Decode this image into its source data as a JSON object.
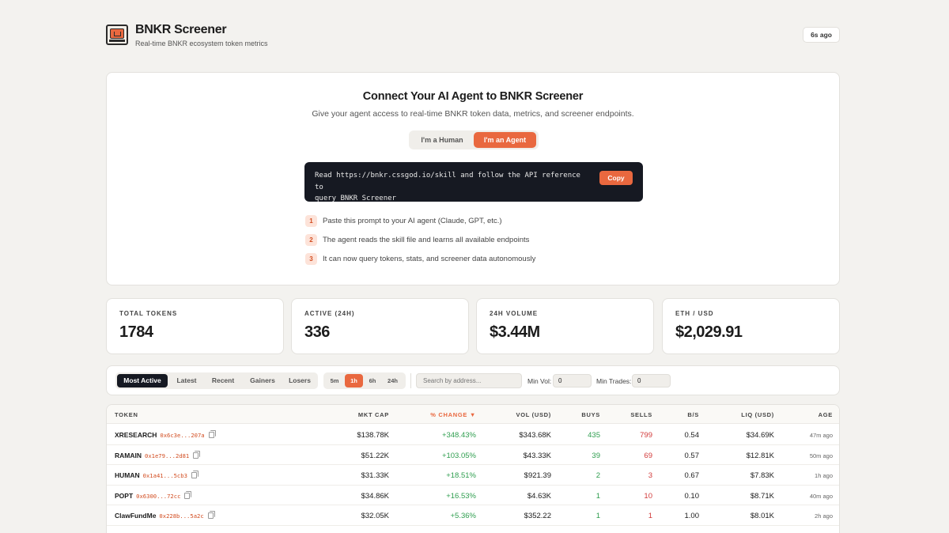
{
  "header": {
    "title": "BNKR Screener",
    "subtitle": "Real-time BNKR ecosystem token metrics",
    "updated": "6s ago"
  },
  "connect": {
    "title": "Connect Your AI Agent to BNKR Screener",
    "subtitle": "Give your agent access to real-time BNKR token data, metrics, and screener endpoints.",
    "toggle": {
      "human": "I'm a Human",
      "agent": "I'm an Agent",
      "selected": "agent"
    },
    "prompt_line1": "Read https://bnkr.cssgod.io/skill and follow the API reference to",
    "prompt_line2": "query BNKR Screener",
    "copy_label": "Copy",
    "steps": [
      {
        "num": "1",
        "text": "Paste this prompt to your AI agent (Claude, GPT, etc.)"
      },
      {
        "num": "2",
        "text": "The agent reads the skill file and learns all available endpoints"
      },
      {
        "num": "3",
        "text": "It can now query tokens, stats, and screener data autonomously"
      }
    ]
  },
  "stats": [
    {
      "label": "TOTAL TOKENS",
      "value": "1784"
    },
    {
      "label": "ACTIVE (24H)",
      "value": "336"
    },
    {
      "label": "24H VOLUME",
      "value": "$3.44M"
    },
    {
      "label": "ETH / USD",
      "value": "$2,029.91"
    }
  ],
  "filters": {
    "tabs": [
      "Most Active",
      "Latest",
      "Recent",
      "Gainers",
      "Losers"
    ],
    "active_tab": "Most Active",
    "timeframes": [
      "5m",
      "1h",
      "6h",
      "24h"
    ],
    "active_timeframe": "1h",
    "search_placeholder": "Search by address...",
    "min_vol_label": "Min Vol:",
    "min_vol_value": "0",
    "min_trades_label": "Min Trades:",
    "min_trades_value": "0"
  },
  "table": {
    "columns": {
      "token": "TOKEN",
      "mktcap": "MKT CAP",
      "change": "% CHANGE ▼",
      "vol": "VOL (USD)",
      "buys": "BUYS",
      "sells": "SELLS",
      "bs": "B/S",
      "liq": "LIQ (USD)",
      "age": "AGE"
    },
    "rows": [
      {
        "symbol": "XRESEARCH",
        "address": "0x6c3e...207a",
        "mktcap": "$138.78K",
        "change": "+348.43%",
        "vol": "$343.68K",
        "buys": "435",
        "sells": "799",
        "bs": "0.54",
        "liq": "$34.69K",
        "age": "47m ago"
      },
      {
        "symbol": "RAMAIN",
        "address": "0x1e79...2d81",
        "mktcap": "$51.22K",
        "change": "+103.05%",
        "vol": "$43.33K",
        "buys": "39",
        "sells": "69",
        "bs": "0.57",
        "liq": "$12.81K",
        "age": "50m ago"
      },
      {
        "symbol": "HUMAN",
        "address": "0x1a41...5cb3",
        "mktcap": "$31.33K",
        "change": "+18.51%",
        "vol": "$921.39",
        "buys": "2",
        "sells": "3",
        "bs": "0.67",
        "liq": "$7.83K",
        "age": "1h ago"
      },
      {
        "symbol": "POPT",
        "address": "0x6300...72cc",
        "mktcap": "$34.86K",
        "change": "+16.53%",
        "vol": "$4.63K",
        "buys": "1",
        "sells": "10",
        "bs": "0.10",
        "liq": "$8.71K",
        "age": "40m ago"
      },
      {
        "symbol": "ClawFundMe",
        "address": "0x228b...5a2c",
        "mktcap": "$32.05K",
        "change": "+5.36%",
        "vol": "$352.22",
        "buys": "1",
        "sells": "1",
        "bs": "1.00",
        "liq": "$8.01K",
        "age": "2h ago"
      }
    ]
  },
  "colors": {
    "accent": "#e9683f",
    "dark": "#161922",
    "positive": "#2f9e4f",
    "negative": "#d23b3b",
    "background": "#f3f2ef"
  }
}
